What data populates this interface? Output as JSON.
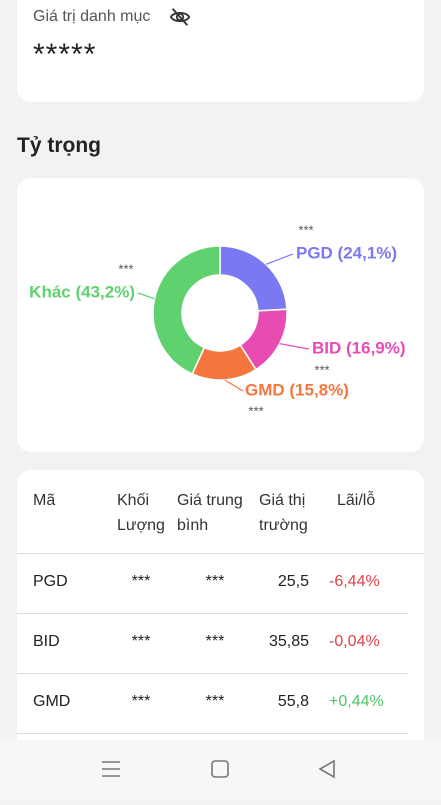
{
  "portfolio": {
    "label": "Giá trị danh mục",
    "value": "*****"
  },
  "allocation": {
    "title": "Tỷ trọng",
    "chart_data": {
      "type": "donut",
      "values": [
        24.1,
        16.9,
        15.8,
        43.2
      ],
      "value_labels": [
        "PGD (24,1%)",
        "BID (16,9%)",
        "GMD (15,8%)",
        "Khác (43,2%)"
      ],
      "colors": [
        "#7b78f4",
        "#e84cb3",
        "#f5773d",
        "#5fd16f"
      ],
      "annotations": [
        "***",
        "***",
        "***",
        "***"
      ]
    }
  },
  "table": {
    "header": [
      "Mã",
      "Khối Lượng",
      "Giá trung bình",
      "Giá thị trường",
      "Lãi/lỗ"
    ],
    "rows": [
      [
        "PGD",
        "***",
        "***",
        "25,5",
        "-6,44%"
      ],
      [
        "BID",
        "***",
        "***",
        "35,85",
        "-0,04%"
      ],
      [
        "GMD",
        "***",
        "***",
        "55,8",
        "+0,44%"
      ]
    ]
  }
}
